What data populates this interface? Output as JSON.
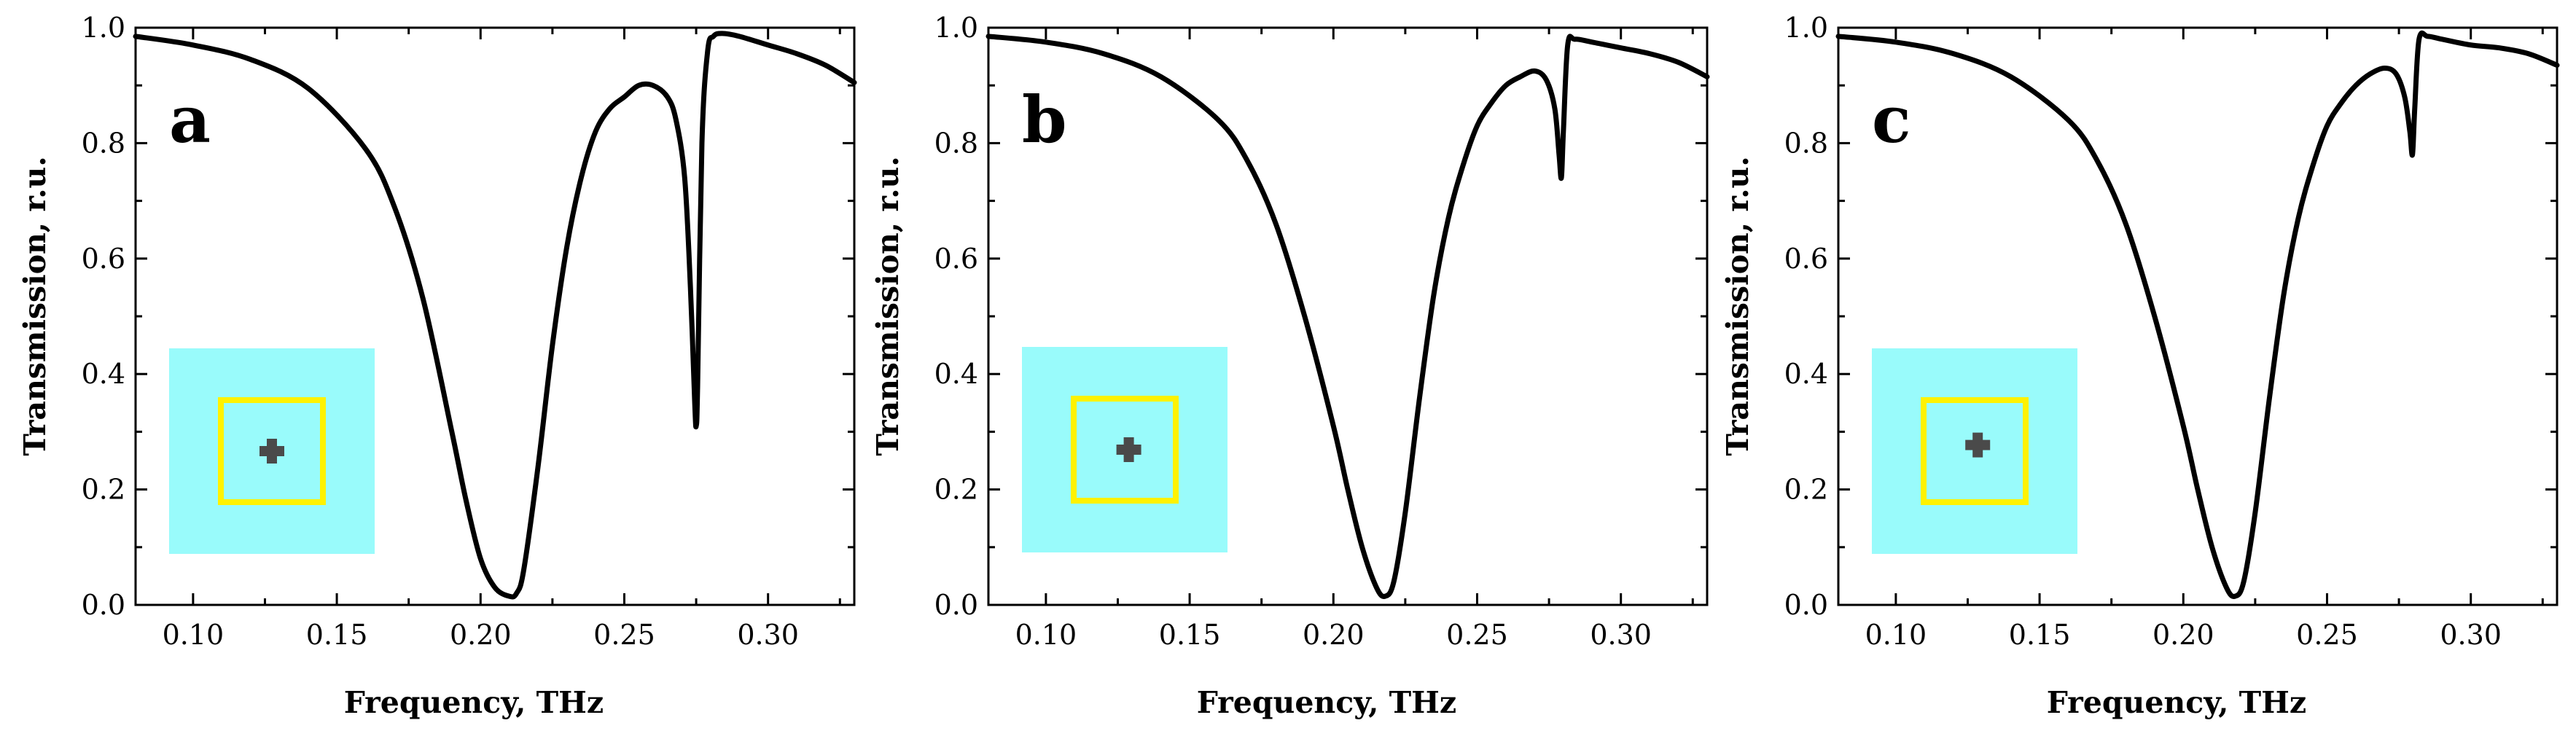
{
  "colors": {
    "line": "#000000",
    "inset_background": "#99FBFB",
    "inset_ring": "#FFF200",
    "inset_cross": "#4A4A4A"
  },
  "chart_data": [
    {
      "panel": "a",
      "type": "line",
      "title": "",
      "xlabel": "Frequency, THz",
      "ylabel": "Transmission, r.u.",
      "xlim": [
        0.08,
        0.33
      ],
      "ylim": [
        0.0,
        1.0
      ],
      "xticks": [
        "0.10",
        "0.15",
        "0.20",
        "0.25",
        "0.30"
      ],
      "yticks": [
        "0.0",
        "0.2",
        "0.4",
        "0.6",
        "0.8",
        "1.0"
      ],
      "grid": false,
      "inset": {
        "cross_offset": [
          0.0,
          0.0
        ]
      },
      "series": [
        {
          "name": "Transmission",
          "x": [
            0.08,
            0.1,
            0.12,
            0.14,
            0.16,
            0.17,
            0.18,
            0.19,
            0.195,
            0.2,
            0.205,
            0.21,
            0.2125,
            0.215,
            0.22,
            0.225,
            0.23,
            0.235,
            0.24,
            0.245,
            0.25,
            0.255,
            0.26,
            0.265,
            0.268,
            0.271,
            0.273,
            0.2745,
            0.275,
            0.2755,
            0.277,
            0.279,
            0.281,
            0.284,
            0.29,
            0.3,
            0.31,
            0.32,
            0.33
          ],
          "y": [
            0.985,
            0.97,
            0.945,
            0.895,
            0.79,
            0.69,
            0.53,
            0.3,
            0.18,
            0.08,
            0.03,
            0.015,
            0.02,
            0.06,
            0.24,
            0.45,
            0.62,
            0.74,
            0.82,
            0.86,
            0.88,
            0.9,
            0.9,
            0.88,
            0.84,
            0.74,
            0.55,
            0.35,
            0.31,
            0.38,
            0.8,
            0.96,
            0.985,
            0.99,
            0.985,
            0.97,
            0.955,
            0.935,
            0.905
          ]
        }
      ]
    },
    {
      "panel": "b",
      "type": "line",
      "title": "",
      "xlabel": "Frequency, THz",
      "ylabel": "Transmission, r.u.",
      "xlim": [
        0.08,
        0.33
      ],
      "ylim": [
        0.0,
        1.0
      ],
      "xticks": [
        "0.10",
        "0.15",
        "0.20",
        "0.25",
        "0.30"
      ],
      "yticks": [
        "0.0",
        "0.2",
        "0.4",
        "0.6",
        "0.8",
        "1.0"
      ],
      "grid": false,
      "inset": {
        "cross_offset": [
          0.04,
          0.0
        ]
      },
      "series": [
        {
          "name": "Transmission",
          "x": [
            0.08,
            0.1,
            0.12,
            0.14,
            0.16,
            0.17,
            0.18,
            0.19,
            0.2,
            0.205,
            0.21,
            0.215,
            0.218,
            0.221,
            0.225,
            0.23,
            0.235,
            0.24,
            0.245,
            0.25,
            0.255,
            0.26,
            0.265,
            0.27,
            0.274,
            0.277,
            0.2785,
            0.2793,
            0.28,
            0.2815,
            0.284,
            0.29,
            0.3,
            0.31,
            0.32,
            0.33
          ],
          "y": [
            0.985,
            0.975,
            0.955,
            0.915,
            0.84,
            0.77,
            0.66,
            0.5,
            0.31,
            0.2,
            0.1,
            0.03,
            0.015,
            0.04,
            0.16,
            0.36,
            0.54,
            0.67,
            0.76,
            0.83,
            0.87,
            0.9,
            0.915,
            0.925,
            0.91,
            0.86,
            0.78,
            0.74,
            0.82,
            0.97,
            0.98,
            0.975,
            0.965,
            0.955,
            0.94,
            0.915
          ]
        }
      ]
    },
    {
      "panel": "c",
      "type": "line",
      "title": "",
      "xlabel": "Frequency, THz",
      "ylabel": "Transmission, r.u.",
      "xlim": [
        0.08,
        0.33
      ],
      "ylim": [
        0.0,
        1.0
      ],
      "xticks": [
        "0.10",
        "0.15",
        "0.20",
        "0.25",
        "0.30"
      ],
      "yticks": [
        "0.0",
        "0.2",
        "0.4",
        "0.6",
        "0.8",
        "1.0"
      ],
      "grid": false,
      "inset": {
        "cross_offset": [
          0.03,
          -0.06
        ]
      },
      "series": [
        {
          "name": "Transmission",
          "x": [
            0.08,
            0.1,
            0.12,
            0.14,
            0.16,
            0.17,
            0.18,
            0.19,
            0.2,
            0.205,
            0.21,
            0.215,
            0.218,
            0.221,
            0.225,
            0.23,
            0.235,
            0.24,
            0.245,
            0.25,
            0.255,
            0.26,
            0.265,
            0.27,
            0.274,
            0.277,
            0.2788,
            0.2797,
            0.2805,
            0.282,
            0.285,
            0.29,
            0.3,
            0.31,
            0.32,
            0.33
          ],
          "y": [
            0.985,
            0.975,
            0.955,
            0.915,
            0.84,
            0.77,
            0.66,
            0.5,
            0.31,
            0.2,
            0.1,
            0.03,
            0.015,
            0.04,
            0.16,
            0.36,
            0.54,
            0.67,
            0.76,
            0.83,
            0.87,
            0.9,
            0.92,
            0.93,
            0.92,
            0.88,
            0.82,
            0.78,
            0.86,
            0.98,
            0.985,
            0.98,
            0.97,
            0.965,
            0.955,
            0.935
          ]
        }
      ]
    }
  ]
}
